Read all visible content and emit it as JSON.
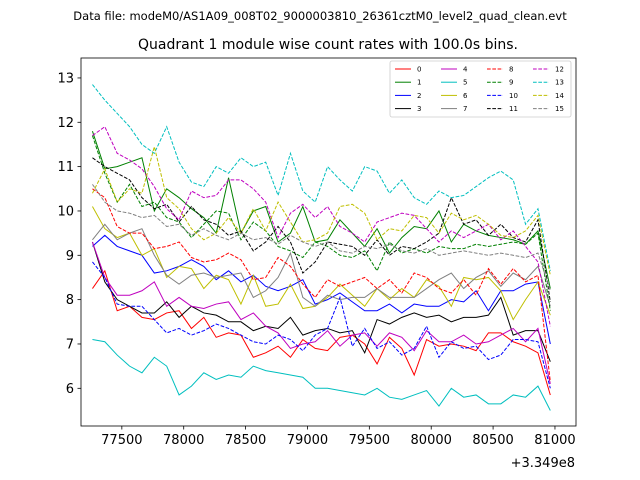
{
  "chart_data": {
    "type": "line",
    "suptitle": "Data file: modeM0/AS1A09_008T02_9000003810_26361cztM0_level2_quad_clean.evt",
    "title": "Quadrant 1 module wise count rates with 100.0s bins.",
    "xlabel": "",
    "ylabel": "",
    "x_offset_label": "+3.349e8",
    "xlim": [
      77170,
      81170
    ],
    "ylim": [
      5.15,
      13.45
    ],
    "x_ticks": [
      77500,
      78000,
      78500,
      79000,
      79500,
      80000,
      80500,
      81000
    ],
    "x_tick_labels": [
      "77500",
      "78000",
      "78500",
      "79000",
      "79500",
      "80000",
      "80500",
      "81000"
    ],
    "y_ticks": [
      6,
      7,
      8,
      9,
      10,
      11,
      12,
      13
    ],
    "y_tick_labels": [
      "6",
      "7",
      "8",
      "9",
      "10",
      "11",
      "12",
      "13"
    ],
    "x": [
      77262.5,
      77362.5,
      77462.5,
      77562.5,
      77662.5,
      77762.5,
      77862.5,
      77962.5,
      78062.5,
      78162.5,
      78262.5,
      78362.5,
      78462.5,
      78562.5,
      78662.5,
      78762.5,
      78862.5,
      78962.5,
      79062.5,
      79162.5,
      79262.5,
      79362.5,
      79462.5,
      79562.5,
      79662.5,
      79762.5,
      79862.5,
      79962.5,
      80062.5,
      80162.5,
      80262.5,
      80362.5,
      80462.5,
      80562.5,
      80662.5,
      80762.5,
      80862.5,
      80962.5
    ],
    "legend_position": "top-right",
    "series": [
      {
        "name": "0",
        "color": "#ff0000",
        "dash": "solid",
        "values": [
          8.25,
          8.65,
          7.75,
          7.85,
          7.6,
          7.55,
          7.7,
          7.75,
          7.35,
          7.6,
          7.15,
          7.25,
          7.2,
          6.7,
          6.8,
          6.95,
          6.7,
          7.1,
          6.9,
          6.85,
          7.15,
          7.2,
          7.0,
          6.55,
          7.15,
          6.9,
          6.3,
          7.1,
          6.95,
          7.0,
          6.95,
          6.85,
          7.25,
          7.25,
          7.05,
          6.95,
          6.8,
          5.85
        ]
      },
      {
        "name": "1",
        "color": "#008000",
        "dash": "solid",
        "values": [
          11.8,
          10.95,
          11.0,
          11.1,
          11.2,
          10.0,
          10.5,
          10.3,
          10.05,
          9.85,
          9.5,
          10.75,
          9.5,
          10.0,
          10.1,
          9.3,
          9.5,
          10.1,
          9.3,
          9.35,
          9.8,
          9.5,
          9.2,
          9.6,
          9.05,
          9.4,
          9.65,
          9.6,
          10.0,
          9.3,
          9.7,
          9.55,
          9.45,
          9.4,
          9.35,
          9.25,
          9.55,
          8.25
        ]
      },
      {
        "name": "2",
        "color": "#0000ff",
        "dash": "solid",
        "values": [
          9.2,
          9.45,
          9.2,
          9.1,
          9.0,
          8.6,
          8.65,
          8.75,
          8.9,
          8.75,
          8.45,
          8.65,
          8.4,
          8.55,
          8.3,
          8.2,
          8.3,
          8.45,
          7.9,
          8.0,
          8.15,
          7.95,
          7.75,
          7.75,
          7.9,
          7.7,
          7.9,
          7.85,
          7.85,
          8.0,
          7.95,
          8.2,
          7.75,
          8.2,
          8.2,
          8.35,
          8.4,
          7.0
        ]
      },
      {
        "name": "3",
        "color": "#000000",
        "dash": "solid",
        "values": [
          9.3,
          8.4,
          8.0,
          7.85,
          7.7,
          7.7,
          7.95,
          7.6,
          7.85,
          7.7,
          7.65,
          7.5,
          7.5,
          7.3,
          7.4,
          7.35,
          7.6,
          7.2,
          7.3,
          7.35,
          7.25,
          7.3,
          6.8,
          7.55,
          7.45,
          7.6,
          7.7,
          7.6,
          7.65,
          7.5,
          7.6,
          7.6,
          7.65,
          8.05,
          7.2,
          7.3,
          7.3,
          6.6
        ]
      },
      {
        "name": "4",
        "color": "#bf00bf",
        "dash": "solid",
        "values": [
          9.3,
          8.5,
          8.1,
          8.1,
          8.2,
          8.4,
          7.85,
          8.05,
          7.85,
          7.8,
          7.9,
          7.95,
          7.55,
          7.7,
          7.4,
          7.25,
          6.9,
          7.0,
          7.05,
          7.3,
          6.95,
          7.2,
          7.25,
          6.95,
          7.25,
          7.15,
          6.85,
          7.3,
          7.05,
          7.05,
          7.2,
          7.0,
          7.05,
          7.2,
          7.35,
          7.05,
          7.35,
          6.1
        ]
      },
      {
        "name": "5",
        "color": "#00bfbf",
        "dash": "solid",
        "values": [
          7.1,
          7.05,
          6.75,
          6.5,
          6.35,
          6.7,
          6.5,
          5.85,
          6.05,
          6.35,
          6.2,
          6.3,
          6.25,
          6.5,
          6.4,
          6.35,
          6.3,
          6.25,
          6.0,
          6.0,
          5.95,
          5.9,
          5.85,
          6.0,
          5.8,
          5.75,
          5.85,
          5.95,
          5.6,
          6.0,
          5.8,
          5.85,
          5.65,
          5.65,
          5.85,
          5.8,
          6.05,
          5.5
        ]
      },
      {
        "name": "6",
        "color": "#bfbf00",
        "dash": "solid",
        "values": [
          10.1,
          9.6,
          9.4,
          9.5,
          9.0,
          9.15,
          8.5,
          8.75,
          8.7,
          8.25,
          8.55,
          8.45,
          7.9,
          8.55,
          7.85,
          7.9,
          8.35,
          7.8,
          7.85,
          8.05,
          8.35,
          8.1,
          7.85,
          8.25,
          8.0,
          8.25,
          8.05,
          8.45,
          8.3,
          7.85,
          8.5,
          8.45,
          8.5,
          8.2,
          7.55,
          8.0,
          8.4,
          7.65
        ]
      },
      {
        "name": "7",
        "color": "#808080",
        "dash": "solid",
        "values": [
          9.35,
          9.7,
          9.35,
          9.5,
          9.6,
          9.0,
          8.55,
          8.35,
          8.55,
          8.6,
          8.5,
          8.55,
          8.6,
          8.05,
          8.2,
          8.5,
          9.05,
          8.05,
          7.85,
          8.1,
          8.0,
          8.05,
          8.05,
          8.25,
          8.05,
          8.05,
          8.05,
          8.25,
          8.45,
          8.6,
          8.25,
          8.5,
          8.65,
          8.3,
          8.6,
          8.45,
          8.75,
          7.85
        ]
      },
      {
        "name": "8",
        "color": "#ff0000",
        "dash": "dashed",
        "values": [
          10.5,
          10.3,
          9.65,
          9.5,
          9.5,
          9.15,
          9.2,
          9.3,
          8.95,
          8.85,
          8.9,
          9.05,
          8.9,
          8.45,
          8.5,
          8.95,
          8.75,
          8.35,
          8.05,
          8.45,
          8.3,
          8.4,
          8.5,
          8.25,
          8.45,
          8.15,
          8.6,
          8.5,
          8.25,
          8.15,
          8.45,
          8.1,
          8.7,
          8.35,
          8.7,
          8.4,
          8.55,
          6.15
        ]
      },
      {
        "name": "9",
        "color": "#008000",
        "dash": "dashed",
        "values": [
          11.7,
          10.85,
          10.2,
          10.6,
          10.1,
          10.2,
          9.85,
          9.75,
          9.4,
          9.7,
          10.0,
          9.95,
          9.35,
          9.75,
          9.55,
          9.2,
          9.1,
          8.95,
          9.3,
          9.2,
          9.0,
          8.95,
          9.1,
          8.65,
          9.3,
          9.05,
          9.15,
          9.05,
          9.2,
          9.15,
          9.15,
          9.25,
          9.2,
          9.25,
          9.3,
          9.25,
          9.5,
          7.75
        ]
      },
      {
        "name": "10",
        "color": "#0000ff",
        "dash": "dashed",
        "values": [
          8.85,
          8.5,
          7.9,
          7.85,
          7.85,
          7.55,
          7.25,
          7.35,
          7.2,
          7.3,
          7.45,
          7.35,
          7.2,
          7.05,
          7.0,
          7.2,
          7.1,
          6.85,
          7.2,
          7.35,
          8.05,
          6.95,
          7.35,
          6.9,
          7.05,
          6.75,
          6.9,
          7.4,
          6.7,
          7.05,
          6.9,
          6.95,
          6.65,
          6.75,
          7.1,
          7.1,
          7.05,
          6.0
        ]
      },
      {
        "name": "11",
        "color": "#000000",
        "dash": "dashed",
        "values": [
          11.2,
          11.0,
          10.85,
          10.7,
          10.3,
          10.05,
          10.15,
          9.75,
          10.1,
          9.8,
          9.7,
          9.45,
          9.55,
          9.1,
          9.3,
          9.65,
          9.3,
          8.6,
          8.85,
          9.3,
          9.25,
          9.2,
          9.0,
          9.35,
          9.0,
          9.2,
          9.15,
          9.3,
          9.5,
          10.3,
          9.7,
          9.8,
          9.45,
          9.7,
          9.4,
          9.3,
          9.8,
          7.95
        ]
      },
      {
        "name": "12",
        "color": "#bf00bf",
        "dash": "dashed",
        "values": [
          11.7,
          11.9,
          11.3,
          11.15,
          10.95,
          10.55,
          10.05,
          9.8,
          10.45,
          10.3,
          10.35,
          10.7,
          10.7,
          10.5,
          10.2,
          9.4,
          9.95,
          10.15,
          9.85,
          10.1,
          9.65,
          9.5,
          9.3,
          9.75,
          9.85,
          9.95,
          9.9,
          9.6,
          9.3,
          9.55,
          9.4,
          9.55,
          9.7,
          9.35,
          9.55,
          9.2,
          8.85,
          7.4
        ]
      },
      {
        "name": "13",
        "color": "#00bfbf",
        "dash": "dashed",
        "values": [
          12.85,
          12.5,
          12.2,
          11.9,
          11.5,
          11.3,
          11.9,
          11.1,
          10.65,
          10.55,
          11.0,
          10.85,
          11.2,
          11.0,
          11.1,
          10.35,
          11.3,
          10.45,
          10.2,
          11.0,
          10.7,
          10.45,
          11.0,
          10.9,
          10.4,
          10.7,
          10.3,
          10.15,
          10.45,
          10.3,
          10.35,
          10.55,
          10.75,
          10.9,
          10.7,
          9.7,
          10.05,
          8.65
        ]
      },
      {
        "name": "14",
        "color": "#bfbf00",
        "dash": "dashed",
        "values": [
          10.4,
          10.95,
          10.2,
          10.5,
          10.4,
          11.45,
          10.3,
          10.05,
          9.6,
          9.35,
          9.5,
          9.85,
          9.5,
          10.05,
          9.55,
          10.2,
          9.75,
          9.3,
          9.35,
          9.5,
          10.1,
          10.15,
          9.95,
          9.35,
          9.6,
          9.55,
          9.9,
          9.85,
          9.5,
          9.95,
          9.8,
          9.9,
          9.7,
          9.45,
          9.4,
          9.55,
          9.9,
          8.55
        ]
      },
      {
        "name": "15",
        "color": "#808080",
        "dash": "dashed",
        "values": [
          10.6,
          10.2,
          10.0,
          9.95,
          9.85,
          9.9,
          9.65,
          9.7,
          9.45,
          9.6,
          9.45,
          9.35,
          9.5,
          9.35,
          9.4,
          9.25,
          9.45,
          9.3,
          9.2,
          9.3,
          9.1,
          9.05,
          9.2,
          9.15,
          9.25,
          9.1,
          9.05,
          9.15,
          9.0,
          9.05,
          9.1,
          9.05,
          9.0,
          9.05,
          9.0,
          8.95,
          9.05,
          8.2
        ]
      }
    ]
  }
}
